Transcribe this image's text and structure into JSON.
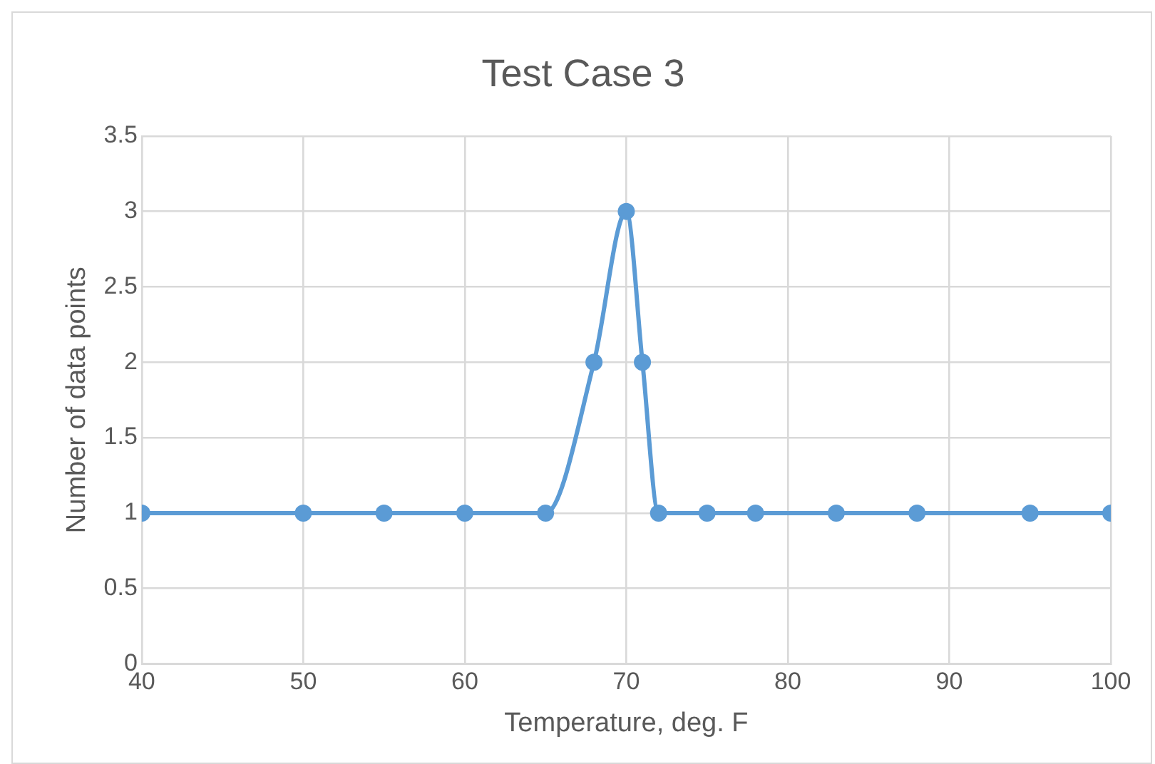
{
  "chart_data": {
    "type": "line",
    "title": "Test Case 3",
    "xlabel": "Temperature, deg. F",
    "ylabel": "Number of data points",
    "x": [
      40,
      50,
      55,
      60,
      65,
      68,
      70,
      71,
      72,
      75,
      78,
      83,
      88,
      95,
      100
    ],
    "series": [
      {
        "color": "#5b9bd5",
        "values": [
          1,
          1,
          1,
          1,
          1,
          2,
          3,
          2,
          1,
          1,
          1,
          1,
          1,
          1,
          1
        ]
      }
    ],
    "xlim": [
      40,
      100
    ],
    "xticks": [
      40,
      50,
      60,
      70,
      80,
      90,
      100
    ],
    "ylim": [
      0,
      3.5
    ],
    "yticks": [
      0,
      0.5,
      1,
      1.5,
      2,
      2.5,
      3,
      3.5
    ],
    "grid": true,
    "legend": false,
    "marker": "circle",
    "line_style": "solid"
  }
}
